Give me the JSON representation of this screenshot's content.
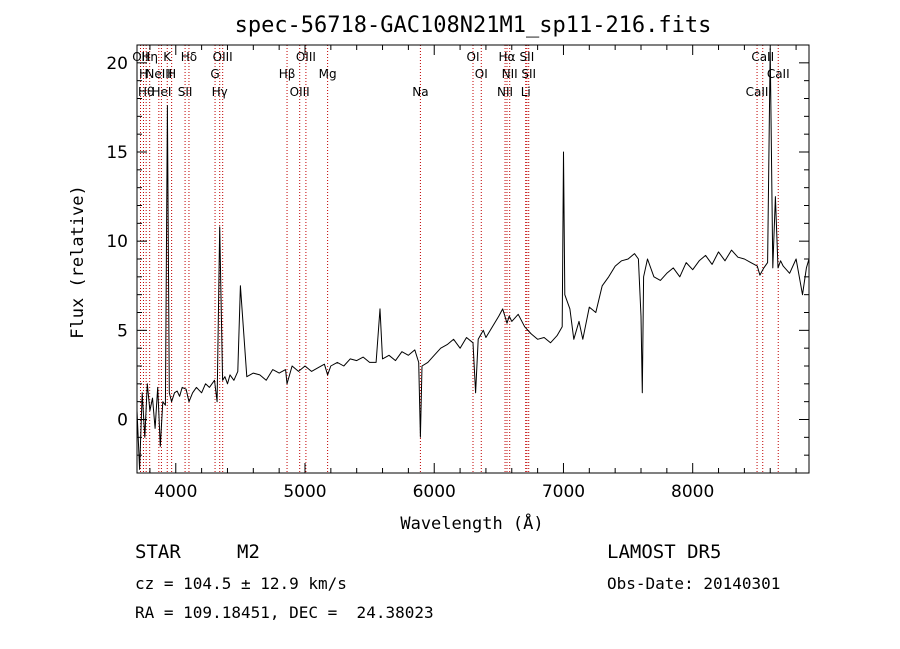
{
  "chart_data": {
    "type": "line",
    "title": "spec-56718-GAC108N21M1_sp11-216.fits",
    "xlabel": "Wavelength (Å)",
    "ylabel": "Flux (relative)",
    "xlim": [
      3700,
      8900
    ],
    "ylim": [
      -3,
      21
    ],
    "xticks": [
      4000,
      5000,
      6000,
      7000,
      8000
    ],
    "yticks": [
      0,
      5,
      10,
      15,
      20
    ],
    "grid": false,
    "series": [
      {
        "color": "#000000",
        "x": [
          3700,
          3720,
          3740,
          3760,
          3780,
          3800,
          3820,
          3840,
          3860,
          3880,
          3900,
          3920,
          3935,
          3950,
          3968,
          3990,
          4010,
          4030,
          4050,
          4080,
          4102,
          4130,
          4160,
          4200,
          4230,
          4260,
          4300,
          4320,
          4340,
          4362,
          4380,
          4400,
          4420,
          4450,
          4480,
          4500,
          4550,
          4600,
          4650,
          4700,
          4750,
          4800,
          4850,
          4861,
          4900,
          4950,
          5000,
          5050,
          5100,
          5150,
          5175,
          5200,
          5250,
          5300,
          5350,
          5400,
          5450,
          5500,
          5550,
          5580,
          5600,
          5650,
          5700,
          5750,
          5800,
          5850,
          5880,
          5893,
          5905,
          5950,
          6000,
          6050,
          6100,
          6150,
          6200,
          6250,
          6300,
          6320,
          6340,
          6380,
          6400,
          6450,
          6500,
          6530,
          6563,
          6580,
          6600,
          6650,
          6700,
          6750,
          6800,
          6850,
          6900,
          6950,
          6990,
          7000,
          7010,
          7050,
          7080,
          7120,
          7150,
          7200,
          7250,
          7300,
          7350,
          7400,
          7450,
          7500,
          7550,
          7580,
          7600,
          7610,
          7620,
          7650,
          7700,
          7750,
          7800,
          7850,
          7900,
          7950,
          8000,
          8050,
          8100,
          8150,
          8200,
          8250,
          8300,
          8350,
          8400,
          8450,
          8500,
          8520,
          8550,
          8580,
          8600,
          8620,
          8640,
          8660,
          8680,
          8700,
          8750,
          8800,
          8850,
          8880,
          8900
        ],
        "y": [
          0.5,
          -2.8,
          1.5,
          -1.0,
          2.0,
          0.5,
          1.2,
          -0.5,
          1.8,
          -1.5,
          1.0,
          0.8,
          17.6,
          1.5,
          1.0,
          1.5,
          1.6,
          1.3,
          1.8,
          1.7,
          1.0,
          1.5,
          1.8,
          1.5,
          2.0,
          1.8,
          2.2,
          1.0,
          10.8,
          2.2,
          2.4,
          2.0,
          2.5,
          2.2,
          2.7,
          7.5,
          2.4,
          2.6,
          2.5,
          2.2,
          2.8,
          2.6,
          2.8,
          2.0,
          3.0,
          2.7,
          3.0,
          2.7,
          2.9,
          3.1,
          2.5,
          3.0,
          3.2,
          3.0,
          3.4,
          3.3,
          3.5,
          3.2,
          3.2,
          6.2,
          3.4,
          3.6,
          3.3,
          3.8,
          3.6,
          3.9,
          3.2,
          -1.0,
          3.0,
          3.2,
          3.6,
          4.0,
          4.2,
          4.5,
          4.0,
          4.6,
          4.3,
          1.5,
          4.5,
          5.0,
          4.6,
          5.2,
          5.8,
          6.2,
          5.4,
          5.8,
          5.5,
          5.9,
          5.2,
          4.8,
          4.5,
          4.6,
          4.3,
          4.7,
          5.2,
          15.0,
          7.0,
          6.2,
          4.5,
          5.5,
          4.5,
          6.3,
          6.0,
          7.5,
          8.0,
          8.6,
          8.9,
          9.0,
          9.3,
          9.0,
          5.8,
          1.5,
          8.0,
          9.0,
          8.0,
          7.8,
          8.2,
          8.5,
          8.0,
          8.8,
          8.4,
          8.9,
          9.2,
          8.7,
          9.4,
          8.9,
          9.5,
          9.1,
          9.0,
          8.8,
          8.6,
          8.1,
          8.5,
          8.8,
          20.8,
          8.5,
          12.5,
          8.5,
          8.9,
          8.6,
          8.2,
          9.0,
          7.0,
          8.5,
          9.0
        ]
      }
    ],
    "lines": [
      {
        "x": 3727,
        "label": "OII"
      },
      {
        "x": 3750,
        "label": "H"
      },
      {
        "x": 3771,
        "label": "Hθ"
      },
      {
        "x": 3798,
        "label": "Hη"
      },
      {
        "x": 3869,
        "label": "NeIII"
      },
      {
        "x": 3889,
        "label": "HeI"
      },
      {
        "x": 3934,
        "label": "K"
      },
      {
        "x": 3968,
        "label": "H"
      },
      {
        "x": 4072,
        "label": "SII"
      },
      {
        "x": 4102,
        "label": "Hδ"
      },
      {
        "x": 4304,
        "label": "G"
      },
      {
        "x": 4340,
        "label": "Hγ"
      },
      {
        "x": 4363,
        "label": "OIII"
      },
      {
        "x": 4861,
        "label": "Hβ"
      },
      {
        "x": 4959,
        "label": "OIII"
      },
      {
        "x": 5007,
        "label": "OIII"
      },
      {
        "x": 5175,
        "label": "Mg"
      },
      {
        "x": 5893,
        "label": "Na"
      },
      {
        "x": 6300,
        "label": "OI"
      },
      {
        "x": 6364,
        "label": "OI"
      },
      {
        "x": 6548,
        "label": "NII"
      },
      {
        "x": 6563,
        "label": "Hα"
      },
      {
        "x": 6584,
        "label": "NII"
      },
      {
        "x": 6708,
        "label": "Li"
      },
      {
        "x": 6717,
        "label": "SII"
      },
      {
        "x": 6731,
        "label": "SII"
      },
      {
        "x": 8498,
        "label": "CaII"
      },
      {
        "x": 8542,
        "label": "CaII"
      },
      {
        "x": 8662,
        "label": "CaII"
      }
    ]
  },
  "info": {
    "class_label": "STAR",
    "subclass": "M2",
    "survey": "LAMOST DR5",
    "cz": "cz = 104.5 ± 12.9 km/s",
    "obs_date": "Obs-Date: 20140301",
    "coords": "RA = 109.18451, DEC =  24.38023"
  }
}
